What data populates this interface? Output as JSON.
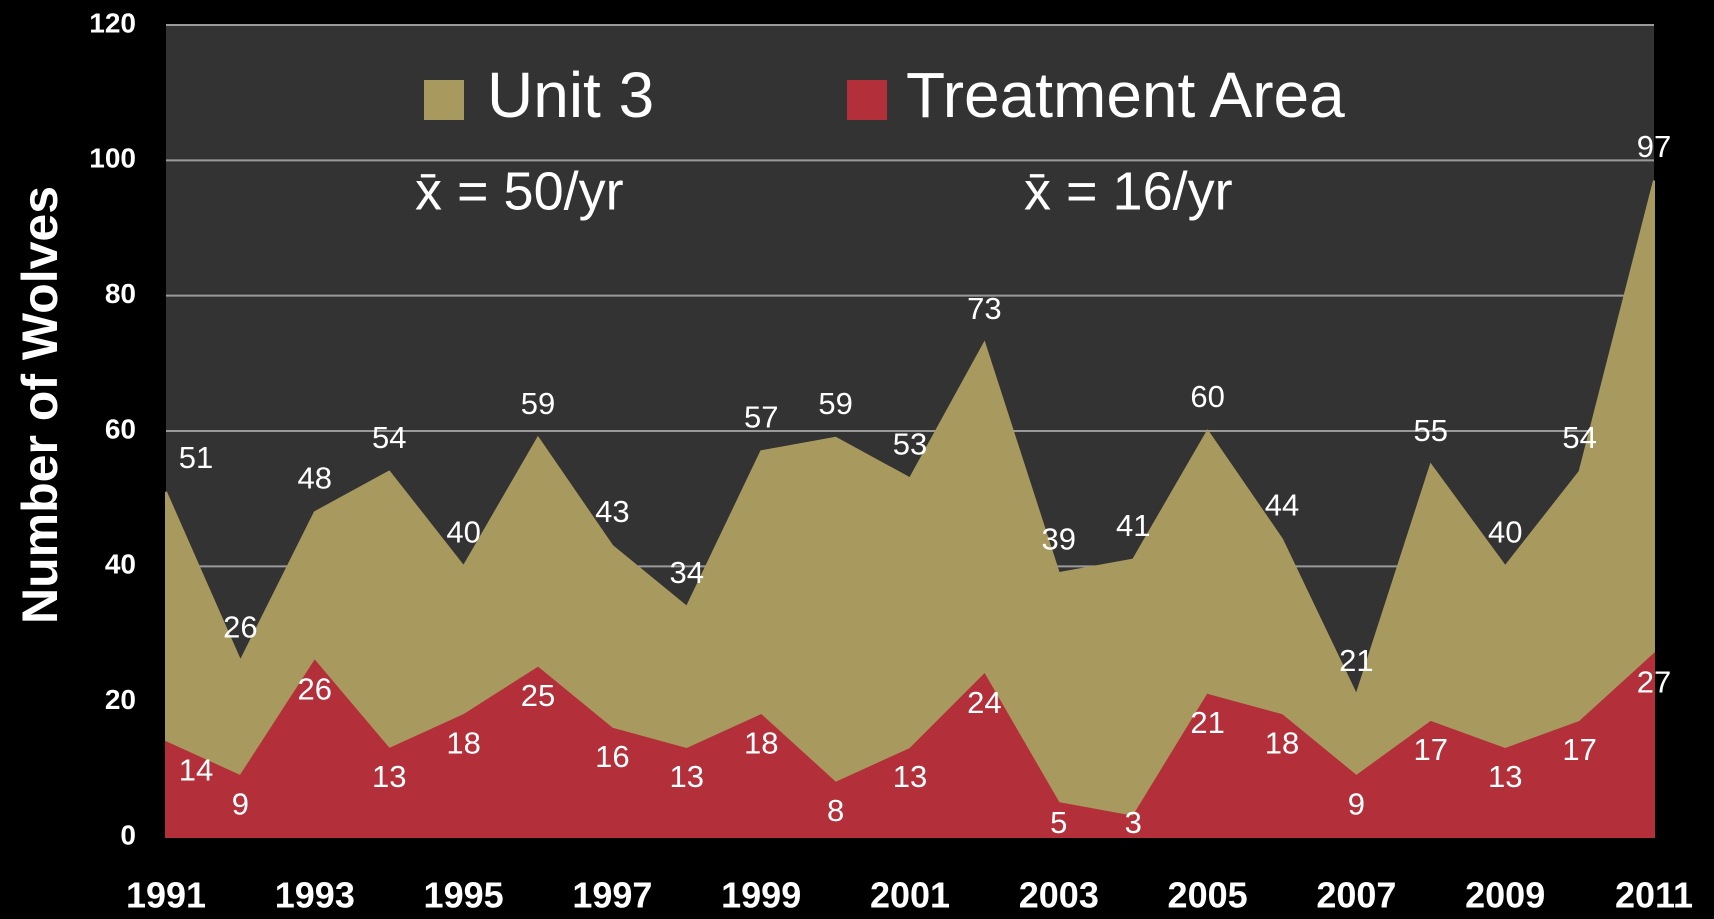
{
  "chart_data": {
    "type": "area",
    "y_label": "Number of Wolves",
    "x": [
      1991,
      1992,
      1993,
      1994,
      1995,
      1996,
      1997,
      1998,
      1999,
      2000,
      2001,
      2002,
      2003,
      2004,
      2005,
      2006,
      2007,
      2008,
      2009,
      2010,
      2011
    ],
    "series": [
      {
        "name": "Unit 3",
        "color": "#a89a5f",
        "values": [
          51,
          26,
          48,
          54,
          40,
          59,
          43,
          34,
          57,
          59,
          53,
          73,
          39,
          41,
          60,
          44,
          21,
          55,
          40,
          54,
          97
        ]
      },
      {
        "name": "Treatment Area",
        "color": "#b3303a",
        "values": [
          14,
          9,
          26,
          13,
          18,
          25,
          16,
          13,
          18,
          8,
          13,
          24,
          5,
          3,
          21,
          18,
          9,
          17,
          13,
          17,
          27
        ]
      }
    ],
    "annotations": [
      "x̄ = 50/yr",
      "x̄ = 16/yr"
    ],
    "xlim": [
      1991,
      2011
    ],
    "xticks": [
      1991,
      1993,
      1995,
      1997,
      1999,
      2001,
      2003,
      2005,
      2007,
      2009,
      2011
    ],
    "ylim": [
      0,
      120
    ],
    "yticks": [
      0,
      20,
      40,
      60,
      80,
      100,
      120
    ],
    "grid": true,
    "legend": "top"
  }
}
